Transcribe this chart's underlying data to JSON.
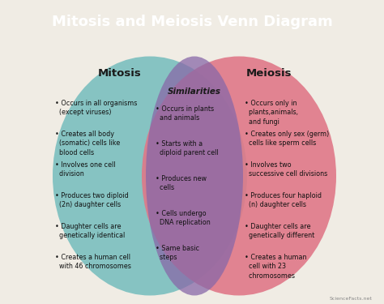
{
  "title": "Mitosis and Meiosis Venn Diagram",
  "title_bg": "#a08050",
  "title_color": "white",
  "bg_color": "#f0ece4",
  "left_circle_color": "#7bbfbf",
  "right_circle_color": "#e07888",
  "overlap_color": "#8868a8",
  "left_label": "Mitosis",
  "right_label": "Meiosis",
  "center_label": "Similarities",
  "mitosis_items": [
    "• Occurs in all organisms\n  (except viruses)",
    "• Creates all body\n  (somatic) cells like\n  blood cells",
    "• Involves one cell\n  division",
    "• Produces two diploid\n  (2n) daughter cells",
    "• Daughter cells are\n  genetically identical",
    "• Creates a human cell\n  with 46 chromosomes"
  ],
  "similarities_items": [
    "• Occurs in plants\n  and animals",
    "• Starts with a\n  diploid parent cell",
    "• Produces new\n  cells",
    "• Cells undergo\n  DNA replication",
    "• Same basic\n  steps"
  ],
  "meiosis_items": [
    "• Occurs only in\n  plants,animals,\n  and fungi",
    "• Creates only sex (germ)\n  cells like sperm cells",
    "• Involves two\n  successive cell divisions",
    "• Produces four haploid\n  (n) daughter cells",
    "• Daughter cells are\n  genetically different",
    "• Creates a human\n  cell with 23\n  chromosomes"
  ],
  "watermark": "ScienceFacts.net"
}
